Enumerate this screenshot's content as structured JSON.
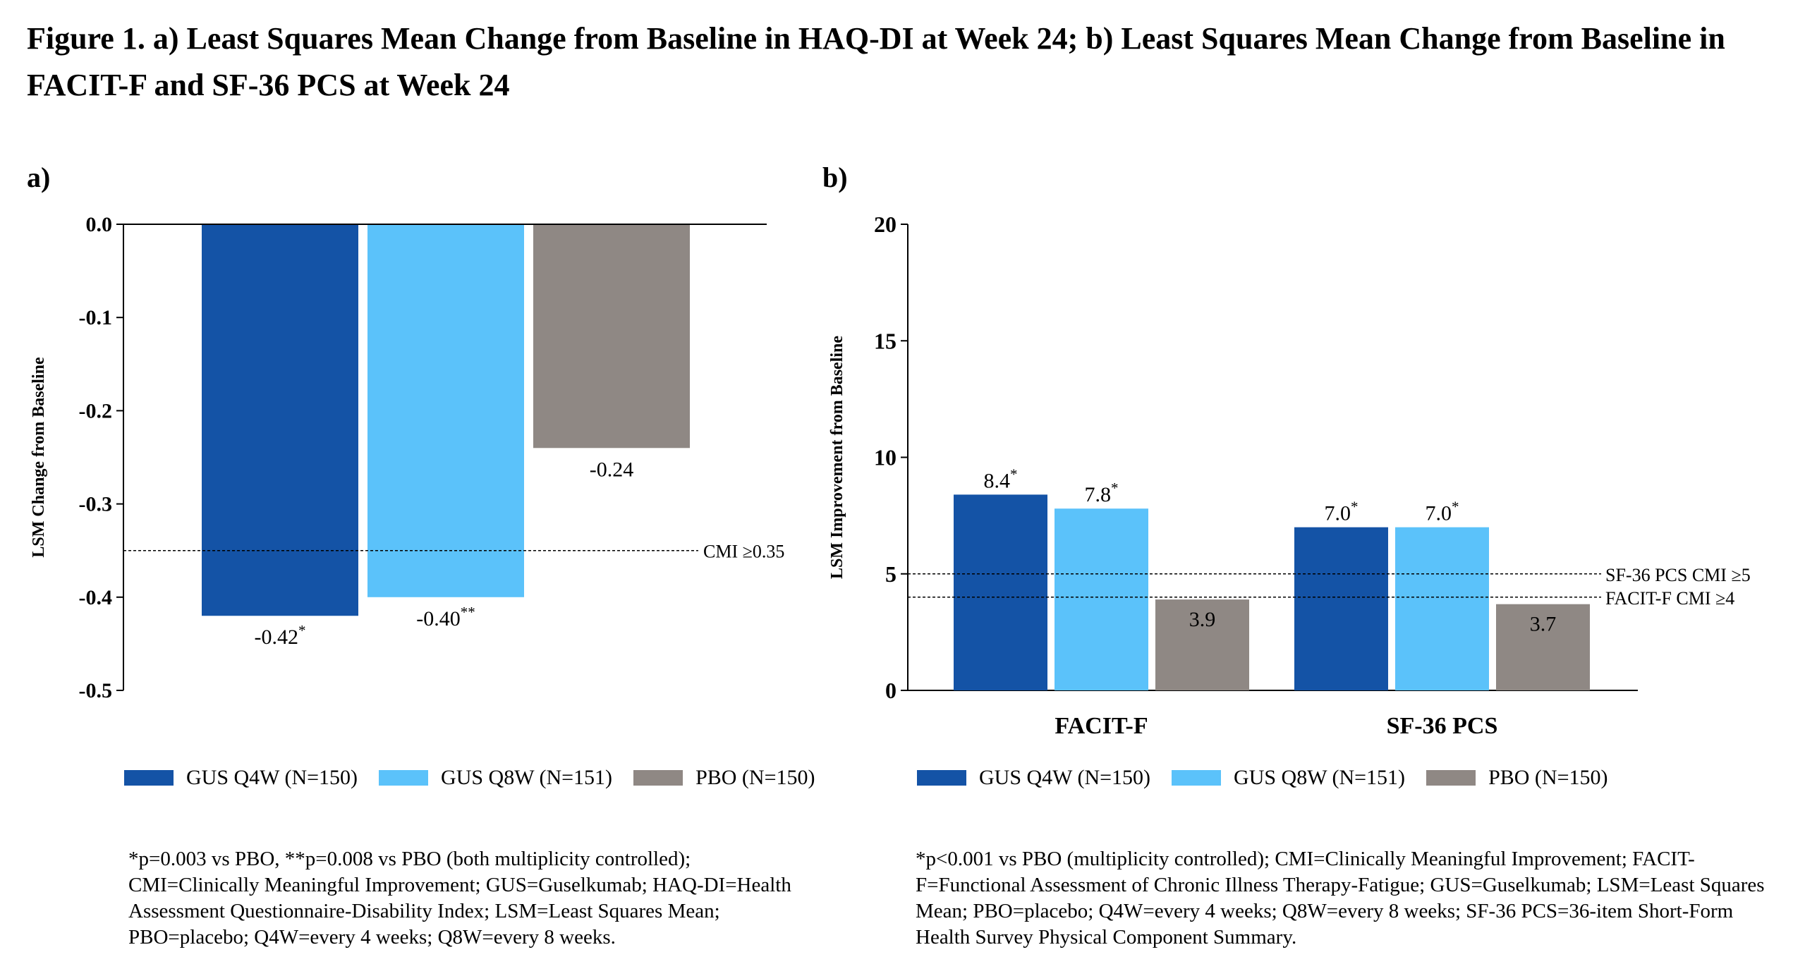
{
  "title": "Figure 1. a) Least Squares Mean Change from Baseline in HAQ-DI at Week 24; b) Least Squares Mean Change from Baseline in FACIT-F and SF-36 PCS at Week 24",
  "colors": {
    "gus_q4w": "#1453a6",
    "gus_q8w": "#5bc2fa",
    "pbo": "#8f8884"
  },
  "chart_data": [
    {
      "panel": "a)",
      "type": "bar",
      "ylabel": "LSM Change from Baseline",
      "ylim": [
        -0.5,
        0.0
      ],
      "yticks": [
        "0.0",
        "-0.1",
        "-0.2",
        "-0.3",
        "-0.4",
        "-0.5"
      ],
      "series": [
        {
          "name": "GUS Q4W (N=150)",
          "values": [
            -0.42
          ],
          "labels": [
            "-0.42"
          ],
          "sup": [
            "*"
          ]
        },
        {
          "name": "GUS Q8W (N=151)",
          "values": [
            -0.4
          ],
          "labels": [
            "-0.40"
          ],
          "sup": [
            "**"
          ]
        },
        {
          "name": "PBO (N=150)",
          "values": [
            -0.24
          ],
          "labels": [
            "-0.24"
          ],
          "sup": [
            ""
          ]
        }
      ],
      "reference_lines": [
        {
          "value": -0.35,
          "label": "CMI ≥0.35"
        }
      ],
      "footnote": "*p=0.003 vs PBO, **p=0.008 vs PBO (both multiplicity controlled); CMI=Clinically Meaningful Improvement; GUS=Guselkumab; HAQ-DI=Health Assessment Questionnaire-Disability Index; LSM=Least Squares Mean; PBO=placebo; Q4W=every 4 weeks; Q8W=every 8 weeks."
    },
    {
      "panel": "b)",
      "type": "bar",
      "ylabel": "LSM Improvement from Baseline",
      "ylim": [
        0,
        20
      ],
      "yticks": [
        "0",
        "5",
        "10",
        "15",
        "20"
      ],
      "categories": [
        "FACIT-F",
        "SF-36 PCS"
      ],
      "series": [
        {
          "name": "GUS Q4W (N=150)",
          "values": [
            8.4,
            7.0
          ],
          "labels": [
            "8.4",
            "7.0"
          ],
          "sup": [
            "*",
            "*"
          ]
        },
        {
          "name": "GUS Q8W (N=151)",
          "values": [
            7.8,
            7.0
          ],
          "labels": [
            "7.8",
            "7.0"
          ],
          "sup": [
            "*",
            "*"
          ]
        },
        {
          "name": "PBO (N=150)",
          "values": [
            3.9,
            3.7
          ],
          "labels": [
            "3.9",
            "3.7"
          ],
          "sup": [
            "",
            ""
          ]
        }
      ],
      "reference_lines": [
        {
          "value": 5,
          "label": "SF-36 PCS CMI ≥5"
        },
        {
          "value": 4,
          "label": "FACIT-F CMI ≥4"
        }
      ],
      "footnote": "*p<0.001 vs PBO (multiplicity controlled); CMI=Clinically Meaningful Improvement; FACIT-F=Functional Assessment of Chronic Illness Therapy-Fatigue; GUS=Guselkumab; LSM=Least Squares Mean; PBO=placebo; Q4W=every 4 weeks; Q8W=every 8 weeks; SF-36 PCS=36-item Short-Form Health Survey Physical Component Summary."
    }
  ]
}
